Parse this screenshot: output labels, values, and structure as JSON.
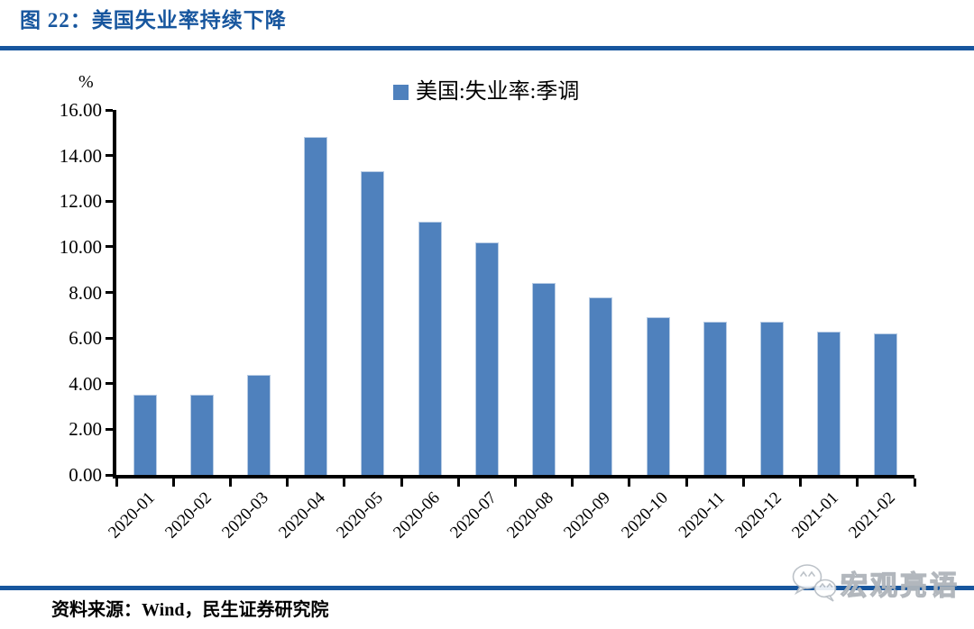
{
  "page": {
    "title": "图 22：美国失业率持续下降",
    "source_note": "资料来源：Wind，民生证券研究院",
    "watermark_text": "宏观亮语"
  },
  "colors": {
    "heading_blue": "#17569E",
    "divider_blue": "#17569E",
    "bar_fill": "#4F81BD",
    "bar_border": "#B8CCE4",
    "axis_black": "#000000",
    "watermark_gray": "#B9BFC6"
  },
  "chart_data": {
    "type": "bar",
    "title": "图 22：美国失业率持续下降",
    "unit_label": "%",
    "legend": [
      {
        "label": "美国:失业率:季调",
        "color": "#4F81BD"
      }
    ],
    "legend_position": "top-center",
    "categories": [
      "2020-01",
      "2020-02",
      "2020-03",
      "2020-04",
      "2020-05",
      "2020-06",
      "2020-07",
      "2020-08",
      "2020-09",
      "2020-10",
      "2020-11",
      "2020-12",
      "2021-01",
      "2021-02"
    ],
    "values": [
      3.5,
      3.5,
      4.4,
      14.8,
      13.3,
      11.1,
      10.2,
      8.4,
      7.8,
      6.9,
      6.7,
      6.7,
      6.3,
      6.2
    ],
    "ylim": [
      0,
      16
    ],
    "y_tick_step": 2,
    "y_tick_labels": [
      "0.00",
      "2.00",
      "4.00",
      "6.00",
      "8.00",
      "10.00",
      "12.00",
      "14.00",
      "16.00"
    ],
    "grid": false,
    "x_label_rotation_deg": -45,
    "xlabel": "",
    "ylabel": "%"
  }
}
